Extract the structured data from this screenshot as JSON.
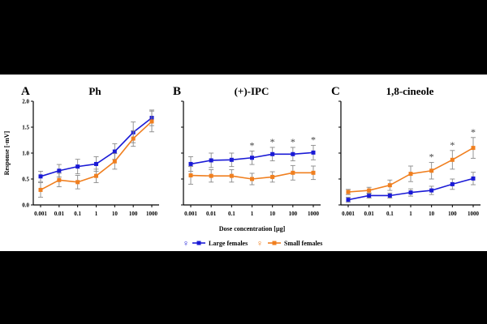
{
  "chart_data": [
    {
      "type": "line",
      "panel_letter": "A",
      "title": "Ph",
      "categories": [
        "0.001",
        "0.01",
        "0.1",
        "1",
        "10",
        "100",
        "1000"
      ],
      "ylabel": "Response [-mV]",
      "xlabel": "",
      "ylim": [
        0,
        2.0
      ],
      "yticks": [
        "0.0",
        "0.5",
        "1.0",
        "1.5",
        "2.0"
      ],
      "series": [
        {
          "name": "Large females",
          "values": [
            0.55,
            0.66,
            0.74,
            0.79,
            1.03,
            1.4,
            1.68
          ],
          "errors": [
            0.1,
            0.12,
            0.14,
            0.14,
            0.15,
            0.2,
            0.15
          ]
        },
        {
          "name": "Small females",
          "values": [
            0.29,
            0.48,
            0.44,
            0.56,
            0.84,
            1.28,
            1.61
          ],
          "errors": [
            0.14,
            0.13,
            0.13,
            0.13,
            0.15,
            0.15,
            0.2
          ]
        }
      ],
      "significance": []
    },
    {
      "type": "line",
      "panel_letter": "B",
      "title": "(+)-IPC",
      "categories": [
        "0.001",
        "0.01",
        "0.1",
        "1",
        "10",
        "100",
        "1000"
      ],
      "ylabel": "",
      "xlabel": "Dose concentration [µg]",
      "ylim": [
        0,
        2.0
      ],
      "series": [
        {
          "name": "Large females",
          "values": [
            0.79,
            0.86,
            0.87,
            0.91,
            0.98,
            0.98,
            1.01
          ],
          "errors": [
            0.14,
            0.14,
            0.13,
            0.13,
            0.13,
            0.13,
            0.14
          ]
        },
        {
          "name": "Small females",
          "values": [
            0.57,
            0.56,
            0.56,
            0.5,
            0.54,
            0.62,
            0.62
          ],
          "errors": [
            0.17,
            0.12,
            0.12,
            0.11,
            0.1,
            0.14,
            0.13
          ]
        }
      ],
      "significance": [
        "1",
        "10",
        "100",
        "1000"
      ],
      "significance_mark": "*"
    },
    {
      "type": "line",
      "panel_letter": "C",
      "title": "1,8-cineole",
      "categories": [
        "0.001",
        "0.01",
        "0.1",
        "1",
        "10",
        "100",
        "1000"
      ],
      "ylabel": "",
      "xlabel": "",
      "ylim": [
        0,
        2.0
      ],
      "series": [
        {
          "name": "Large females",
          "values": [
            0.1,
            0.18,
            0.18,
            0.24,
            0.28,
            0.4,
            0.51
          ],
          "errors": [
            0.05,
            0.05,
            0.05,
            0.07,
            0.08,
            0.1,
            0.12
          ]
        },
        {
          "name": "Small females",
          "values": [
            0.25,
            0.28,
            0.38,
            0.6,
            0.66,
            0.87,
            1.1
          ],
          "errors": [
            0.05,
            0.06,
            0.1,
            0.15,
            0.16,
            0.18,
            0.2
          ]
        }
      ],
      "significance": [
        "10",
        "100",
        "1000"
      ],
      "significance_mark": "*"
    }
  ],
  "legend": {
    "entries": [
      {
        "symbol": "♀",
        "label": "Large females",
        "color": "#1a1ad6"
      },
      {
        "symbol": "♀",
        "label": "Small females",
        "color": "#f07f1f"
      }
    ]
  },
  "colors": {
    "large": "#1a1ad6",
    "small": "#f07f1f",
    "error_bar": "#8a8a8a"
  }
}
